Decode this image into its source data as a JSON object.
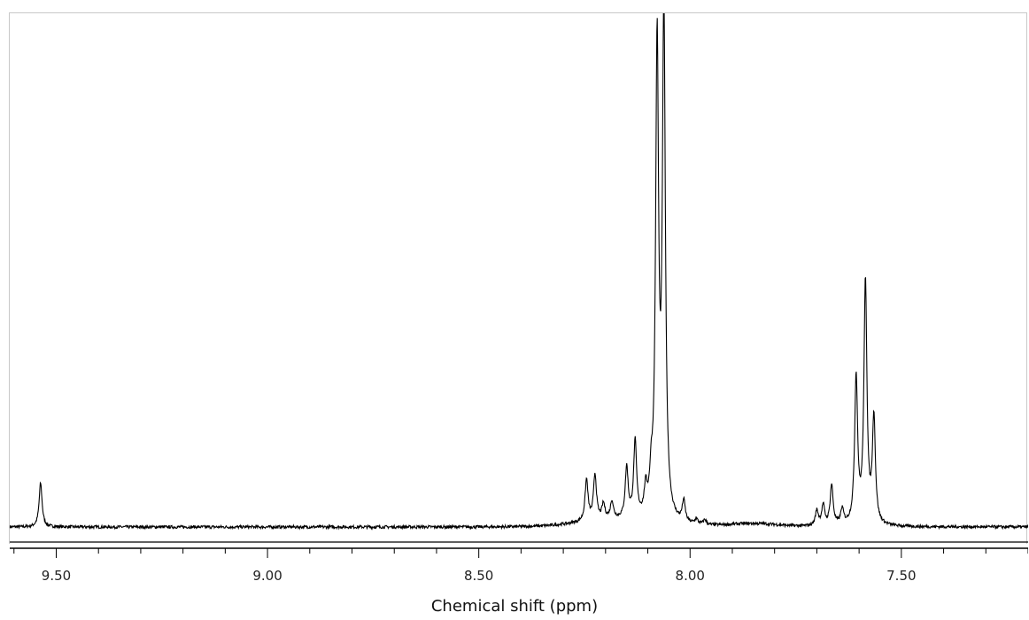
{
  "chart_data": {
    "type": "line",
    "title": "",
    "xlabel": "Chemical shift (ppm)",
    "ylabel": "",
    "xlim": [
      9.61,
      7.2
    ],
    "x_reversed": true,
    "grid": false,
    "major_ticks": [
      9.5,
      9.0,
      8.5,
      8.0,
      7.5
    ],
    "tick_labels": [
      "9.50",
      "9.00",
      "8.50",
      "8.00",
      "7.50"
    ],
    "minor_tick_step": 0.1,
    "baseline_intensity": 0.0,
    "peaks": [
      {
        "shift": 9.537,
        "intensity": 0.087
      },
      {
        "shift": 8.245,
        "intensity": 0.082
      },
      {
        "shift": 8.225,
        "intensity": 0.09
      },
      {
        "shift": 8.205,
        "intensity": 0.03
      },
      {
        "shift": 8.185,
        "intensity": 0.035
      },
      {
        "shift": 8.15,
        "intensity": 0.1
      },
      {
        "shift": 8.13,
        "intensity": 0.15
      },
      {
        "shift": 8.105,
        "intensity": 0.05
      },
      {
        "shift": 8.092,
        "intensity": 0.06
      },
      {
        "shift": 8.078,
        "intensity": 0.93
      },
      {
        "shift": 8.062,
        "intensity": 1.0
      },
      {
        "shift": 8.015,
        "intensity": 0.042
      },
      {
        "shift": 7.985,
        "intensity": 0.01
      },
      {
        "shift": 7.965,
        "intensity": 0.01
      },
      {
        "shift": 7.7,
        "intensity": 0.03
      },
      {
        "shift": 7.685,
        "intensity": 0.04
      },
      {
        "shift": 7.665,
        "intensity": 0.08
      },
      {
        "shift": 7.64,
        "intensity": 0.03
      },
      {
        "shift": 7.607,
        "intensity": 0.29
      },
      {
        "shift": 7.585,
        "intensity": 0.48
      },
      {
        "shift": 7.565,
        "intensity": 0.21
      }
    ]
  }
}
